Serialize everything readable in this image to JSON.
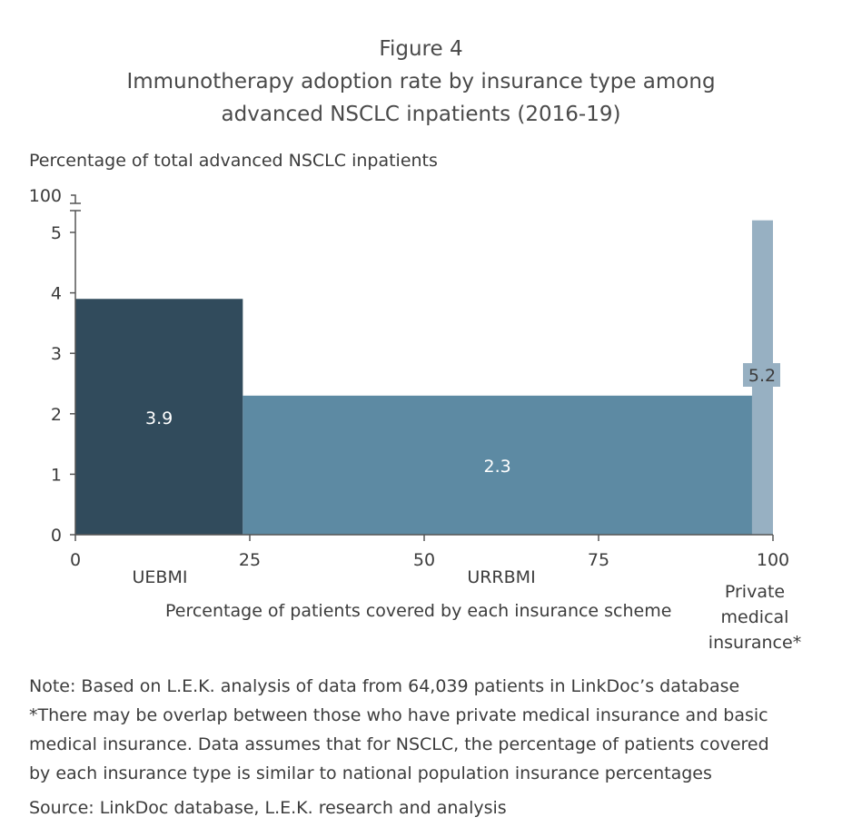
{
  "chart_data": {
    "type": "bar",
    "subtype": "marimekko",
    "title_line1": "Figure 4",
    "title_line2": "Immunotherapy adoption rate by insurance type among",
    "title_line3": "advanced NSCLC inpatients (2016-19)",
    "ylabel": "Percentage of total advanced NSCLC inpatients",
    "xlabel": "Percentage of patients covered by each insurance scheme",
    "xlim": [
      0,
      100
    ],
    "ylim": [
      0,
      5.5
    ],
    "y_axis_break": true,
    "y_break_top_label": "100",
    "x_ticks": [
      "0",
      "25",
      "50",
      "75",
      "100"
    ],
    "y_ticks": [
      "0",
      "1",
      "2",
      "3",
      "4",
      "5"
    ],
    "grid": false,
    "series": [
      {
        "category": "UEBMI",
        "x_start": 0,
        "x_end": 24,
        "value": 3.9,
        "label": "3.9",
        "color": "#314b5c"
      },
      {
        "category": "URRBMI",
        "x_start": 24,
        "x_end": 97,
        "value": 2.3,
        "label": "2.3",
        "color": "#5d8aa3"
      },
      {
        "category": "Private medical insurance*",
        "x_start": 97,
        "x_end": 100,
        "value": 5.2,
        "label": "5.2",
        "color": "#97b0c2"
      }
    ],
    "category_labels": [
      "UEBMI",
      "URRBMI",
      "Private",
      "medical",
      "insurance*"
    ]
  },
  "notes": [
    "Note: Based on L.E.K. analysis of data from 64,039 patients in LinkDoc’s database",
    "*There may be overlap between those who have private medical insurance and basic",
    "medical insurance. Data assumes that for NSCLC, the percentage of patients covered",
    "by each insurance type is similar to national population insurance percentages",
    "Source: LinkDoc database, L.E.K. research and analysis"
  ]
}
